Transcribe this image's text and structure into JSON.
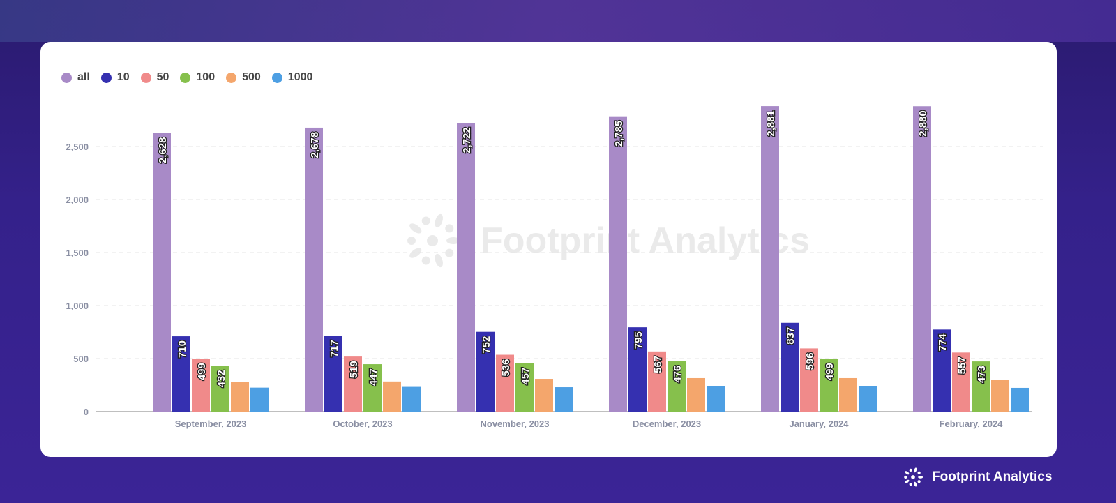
{
  "chart_data": {
    "type": "bar",
    "categories": [
      "September, 2023",
      "October, 2023",
      "November, 2023",
      "December, 2023",
      "January, 2024",
      "February, 2024"
    ],
    "series": [
      {
        "name": "all",
        "color": "#a88ac7",
        "values": [
          2628,
          2678,
          2722,
          2785,
          2881,
          2880
        ],
        "labels": [
          "2,628",
          "2,678",
          "2,722",
          "2,785",
          "2,881",
          "2,880"
        ]
      },
      {
        "name": "10",
        "color": "#3530b0",
        "values": [
          710,
          717,
          752,
          795,
          837,
          774
        ],
        "labels": [
          "710",
          "717",
          "752",
          "795",
          "837",
          "774"
        ]
      },
      {
        "name": "50",
        "color": "#f08a8a",
        "values": [
          499,
          519,
          536,
          567,
          596,
          557
        ],
        "labels": [
          "499",
          "519",
          "536",
          "567",
          "596",
          "557"
        ]
      },
      {
        "name": "100",
        "color": "#86c04c",
        "values": [
          432,
          447,
          457,
          476,
          499,
          473
        ],
        "labels": [
          "432",
          "447",
          "457",
          "476",
          "499",
          "473"
        ]
      },
      {
        "name": "500",
        "color": "#f4a66c",
        "values": [
          280,
          284,
          309,
          316,
          316,
          296
        ]
      },
      {
        "name": "1000",
        "color": "#4d9fe3",
        "values": [
          226,
          233,
          230,
          243,
          243,
          224
        ]
      }
    ],
    "yticks": [
      0,
      500,
      1000,
      1500,
      2000,
      2500
    ],
    "ytick_labels": [
      "0",
      "500",
      "1,000",
      "1,500",
      "2,000",
      "2,500"
    ],
    "ylim": [
      0,
      2900
    ],
    "grid": true,
    "legend": "top-left",
    "title": "",
    "xlabel": "",
    "ylabel": ""
  },
  "watermark": "Footprint Analytics",
  "brand": "Footprint Analytics"
}
